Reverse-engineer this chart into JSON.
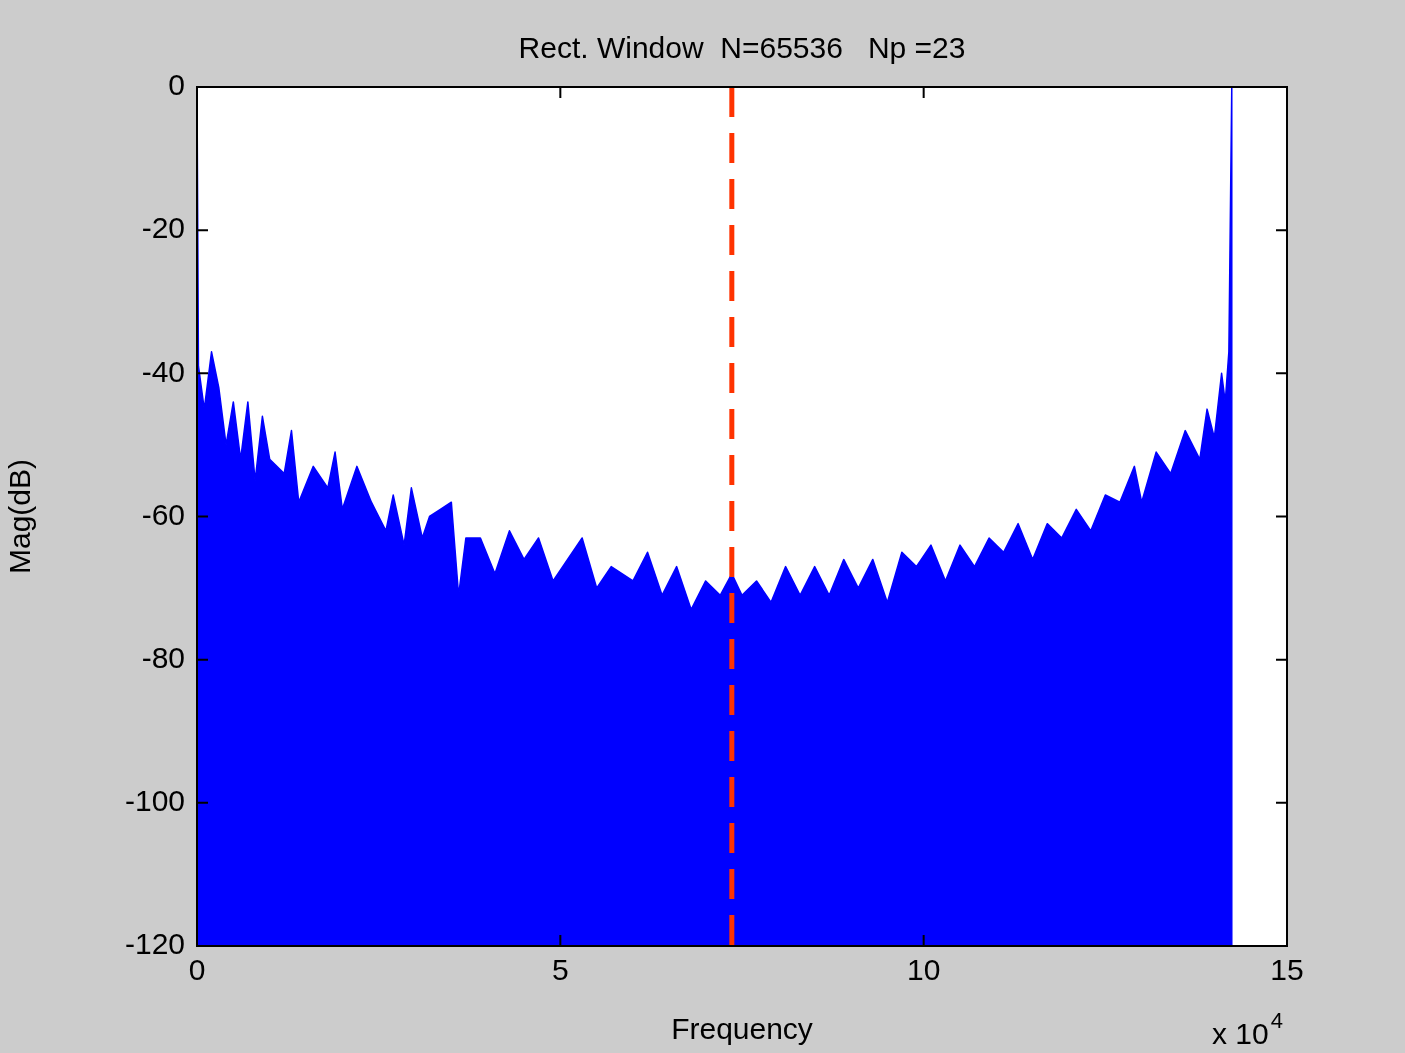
{
  "chart_data": {
    "type": "area",
    "title": "Rect. Window  N=65536   Np =23",
    "xlabel": "Frequency",
    "ylabel": "Mag(dB)",
    "annotations": [
      "x 10$^{4}$"
    ],
    "xlim": [
      0,
      15
    ],
    "xticks": [
      0,
      5,
      10,
      15
    ],
    "ylim": [
      -120,
      0
    ],
    "yticks": [
      0,
      -20,
      -40,
      -60,
      -80,
      -100,
      -120
    ],
    "grid": false,
    "legend": false,
    "marker": "none",
    "x": [
      0,
      0,
      0.02,
      0.1,
      0.2,
      0.3,
      0.4,
      0.5,
      0.6,
      0.7,
      0.8,
      0.9,
      1.0,
      1.2,
      1.3,
      1.4,
      1.6,
      1.8,
      1.9,
      2.0,
      2.2,
      2.4,
      2.6,
      2.7,
      2.85,
      2.95,
      3.1,
      3.2,
      3.5,
      3.6,
      3.7,
      3.9,
      4.1,
      4.3,
      4.5,
      4.7,
      4.9,
      5.1,
      5.3,
      5.5,
      5.7,
      6.0,
      6.2,
      6.4,
      6.6,
      6.8,
      7.0,
      7.2,
      7.36,
      7.5,
      7.7,
      7.9,
      8.1,
      8.3,
      8.5,
      8.7,
      8.9,
      9.1,
      9.3,
      9.5,
      9.7,
      9.9,
      10.1,
      10.3,
      10.5,
      10.7,
      10.9,
      11.1,
      11.3,
      11.5,
      11.7,
      11.9,
      12.1,
      12.3,
      12.5,
      12.7,
      12.9,
      13.0,
      13.2,
      13.4,
      13.6,
      13.8,
      13.9,
      14.0,
      14.1,
      14.15,
      14.2,
      14.24,
      14.24
    ],
    "series": [
      {
        "color": "#0000ff",
        "values": [
          -120,
          0,
          -39,
          -45,
          -37,
          -42,
          -50,
          -44,
          -52,
          -44,
          -55,
          -46,
          -52,
          -54,
          -48,
          -58,
          -53,
          -56,
          -51,
          -59,
          -53,
          -58,
          -62,
          -57,
          -64,
          -56,
          -63,
          -60,
          -58,
          -71,
          -63,
          -63,
          -68,
          -62,
          -66,
          -63,
          -69,
          -66,
          -63,
          -70,
          -67,
          -69,
          -65,
          -71,
          -67,
          -73,
          -69,
          -71,
          -68,
          -71,
          -69,
          -72,
          -67,
          -71,
          -67,
          -71,
          -66,
          -70,
          -66,
          -72,
          -65,
          -67,
          -64,
          -69,
          -64,
          -67,
          -63,
          -65,
          -61,
          -66,
          -61,
          -63,
          -59,
          -62,
          -57,
          -58,
          -53,
          -58,
          -51,
          -54,
          -48,
          -52,
          -45,
          -49,
          -40,
          -44,
          -37,
          0,
          -120
        ]
      }
    ],
    "ref_lines": [
      {
        "axis": "x",
        "value": 7.36,
        "color": "#ff3300",
        "line_style": "dashed"
      }
    ]
  }
}
